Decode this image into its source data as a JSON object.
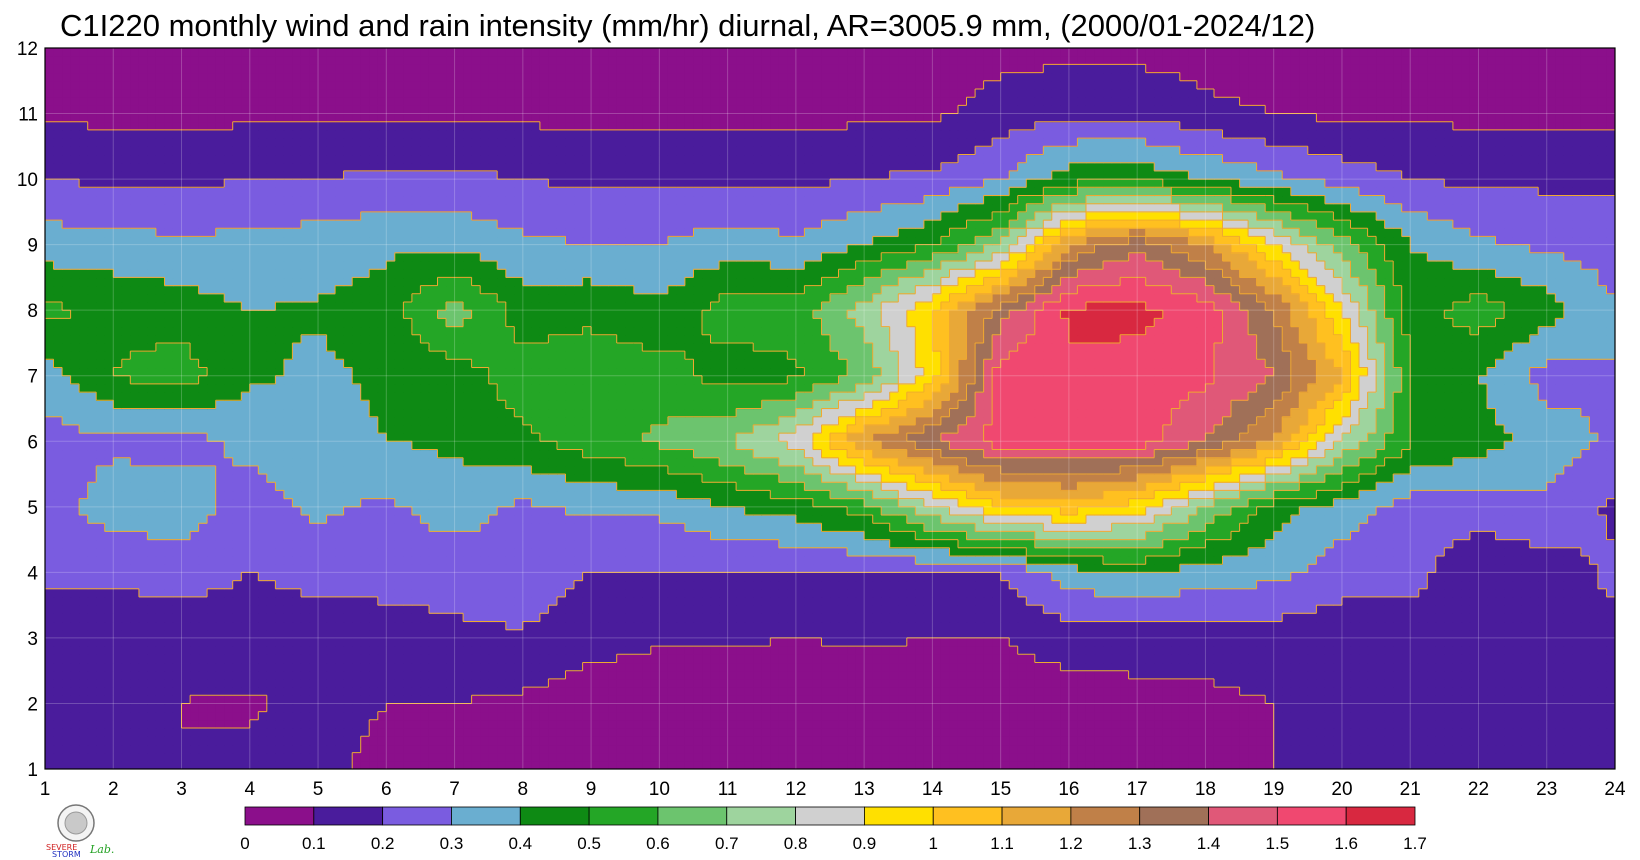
{
  "chart_data": {
    "type": "heatmap",
    "subtype": "filled-contour",
    "title": "C1I220 monthly wind and rain intensity (mm/hr) diurnal, AR=3005.9 mm, (2000/01-2024/12)",
    "xlabel": "",
    "ylabel": "",
    "x": [
      1,
      2,
      3,
      4,
      5,
      6,
      7,
      8,
      9,
      10,
      11,
      12,
      13,
      14,
      15,
      16,
      17,
      18,
      19,
      20,
      21,
      22,
      23,
      24
    ],
    "y": [
      1,
      2,
      3,
      4,
      5,
      6,
      7,
      8,
      9,
      10,
      11,
      12
    ],
    "xlim": [
      1,
      24
    ],
    "ylim": [
      1,
      12
    ],
    "x_ticks": [
      "1",
      "2",
      "3",
      "4",
      "5",
      "6",
      "7",
      "8",
      "9",
      "10",
      "11",
      "12",
      "13",
      "14",
      "15",
      "16",
      "17",
      "18",
      "19",
      "20",
      "21",
      "22",
      "23",
      "24"
    ],
    "y_ticks": [
      "1",
      "2",
      "3",
      "4",
      "5",
      "6",
      "7",
      "8",
      "9",
      "10",
      "11",
      "12"
    ],
    "grid": true,
    "levels": [
      0,
      0.1,
      0.2,
      0.3,
      0.4,
      0.5,
      0.6,
      0.7,
      0.8,
      0.9,
      1,
      1.1,
      1.2,
      1.3,
      1.4,
      1.5,
      1.6,
      1.7
    ],
    "colorbar_ticks": [
      "0",
      "0.1",
      "0.2",
      "0.3",
      "0.4",
      "0.5",
      "0.6",
      "0.7",
      "0.8",
      "0.9",
      "1",
      "1.1",
      "1.2",
      "1.3",
      "1.4",
      "1.5",
      "1.6",
      "1.7"
    ],
    "level_colors": [
      "#8b0f8b",
      "#4a1c9c",
      "#7a5ce0",
      "#6aaed0",
      "#0e8a14",
      "#24a626",
      "#6cc46e",
      "#9ed49e",
      "#d0d0d0",
      "#ffe000",
      "#ffc020",
      "#e8a838",
      "#c08048",
      "#a07058",
      "#e05878",
      "#f04870",
      "#d82840"
    ],
    "values": [
      [
        0.15,
        0.12,
        0.1,
        0.12,
        0.12,
        0.08,
        0.08,
        0.08,
        0.07,
        0.07,
        0.07,
        0.07,
        0.07,
        0.06,
        0.06,
        0.08,
        0.08,
        0.1,
        0.1,
        0.12,
        0.12,
        0.12,
        0.14,
        0.15
      ],
      [
        0.15,
        0.14,
        0.1,
        0.09,
        0.12,
        0.1,
        0.1,
        0.08,
        0.05,
        0.05,
        0.05,
        0.05,
        0.05,
        0.05,
        0.05,
        0.06,
        0.07,
        0.08,
        0.1,
        0.12,
        0.13,
        0.12,
        0.1,
        0.1
      ],
      [
        0.15,
        0.14,
        0.12,
        0.15,
        0.13,
        0.15,
        0.18,
        0.19,
        0.13,
        0.11,
        0.11,
        0.1,
        0.11,
        0.1,
        0.1,
        0.14,
        0.14,
        0.14,
        0.15,
        0.13,
        0.14,
        0.16,
        0.18,
        0.17
      ],
      [
        0.22,
        0.22,
        0.25,
        0.2,
        0.24,
        0.24,
        0.24,
        0.26,
        0.2,
        0.2,
        0.2,
        0.19,
        0.2,
        0.2,
        0.2,
        0.35,
        0.42,
        0.35,
        0.33,
        0.25,
        0.24,
        0.12,
        0.15,
        0.22
      ],
      [
        0.25,
        0.35,
        0.35,
        0.26,
        0.32,
        0.28,
        0.35,
        0.28,
        0.32,
        0.32,
        0.4,
        0.45,
        0.55,
        0.8,
        1.0,
        1.05,
        0.95,
        0.7,
        0.45,
        0.35,
        0.25,
        0.25,
        0.28,
        0.18
      ],
      [
        0.26,
        0.28,
        0.27,
        0.32,
        0.35,
        0.4,
        0.42,
        0.48,
        0.55,
        0.62,
        0.7,
        0.85,
        1.2,
        1.4,
        1.55,
        1.55,
        1.55,
        1.4,
        1.2,
        0.8,
        0.5,
        0.45,
        0.35,
        0.28
      ],
      [
        0.35,
        0.5,
        0.55,
        0.42,
        0.38,
        0.42,
        0.45,
        0.55,
        0.55,
        0.55,
        0.45,
        0.48,
        0.62,
        0.95,
        1.55,
        1.58,
        1.56,
        1.52,
        1.4,
        1.1,
        0.5,
        0.4,
        0.26,
        0.3
      ],
      [
        0.52,
        0.48,
        0.45,
        0.4,
        0.41,
        0.45,
        0.65,
        0.45,
        0.48,
        0.42,
        0.55,
        0.55,
        0.75,
        1.0,
        1.35,
        1.62,
        1.63,
        1.55,
        1.3,
        0.9,
        0.45,
        0.55,
        0.45,
        0.3
      ],
      [
        0.35,
        0.34,
        0.32,
        0.33,
        0.35,
        0.38,
        0.38,
        0.32,
        0.3,
        0.3,
        0.35,
        0.32,
        0.4,
        0.5,
        0.7,
        1.2,
        1.38,
        1.2,
        0.9,
        0.65,
        0.4,
        0.32,
        0.28,
        0.26
      ],
      [
        0.2,
        0.18,
        0.18,
        0.2,
        0.2,
        0.22,
        0.22,
        0.2,
        0.18,
        0.18,
        0.18,
        0.18,
        0.2,
        0.22,
        0.3,
        0.45,
        0.48,
        0.4,
        0.32,
        0.25,
        0.2,
        0.18,
        0.18,
        0.18
      ],
      [
        0.08,
        0.08,
        0.07,
        0.08,
        0.08,
        0.08,
        0.08,
        0.08,
        0.07,
        0.07,
        0.07,
        0.07,
        0.08,
        0.08,
        0.14,
        0.18,
        0.18,
        0.12,
        0.1,
        0.08,
        0.08,
        0.08,
        0.08,
        0.08
      ],
      [
        0.06,
        0.06,
        0.06,
        0.06,
        0.06,
        0.06,
        0.06,
        0.06,
        0.06,
        0.06,
        0.06,
        0.06,
        0.06,
        0.06,
        0.07,
        0.07,
        0.07,
        0.06,
        0.06,
        0.06,
        0.06,
        0.06,
        0.06,
        0.06
      ]
    ]
  },
  "colorbar": {
    "labels": [
      "0",
      "0.1",
      "0.2",
      "0.3",
      "0.4",
      "0.5",
      "0.6",
      "0.7",
      "0.8",
      "0.9",
      "1",
      "1.1",
      "1.2",
      "1.3",
      "1.4",
      "1.5",
      "1.6",
      "1.7"
    ]
  },
  "logo": {
    "text_line1": "SEVERE",
    "text_line2": "STORM",
    "text_lab": "Lab.",
    "colors": {
      "severe": "#d02020",
      "storm": "#2030c0",
      "lab": "#20a020"
    }
  }
}
